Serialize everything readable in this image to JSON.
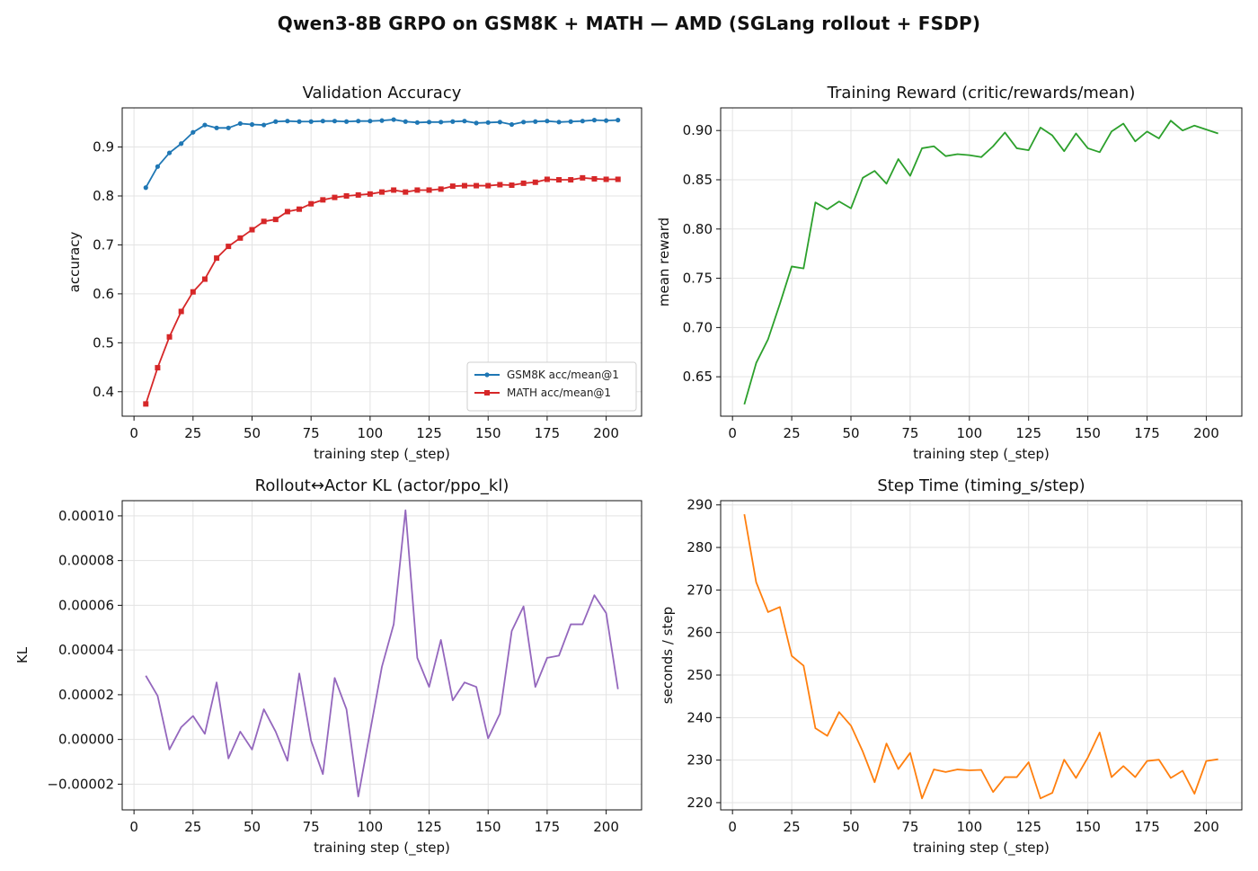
{
  "figure": {
    "suptitle": "Qwen3-8B GRPO on GSM8K + MATH — AMD (SGLang rollout + FSDP)"
  },
  "chart_data": [
    {
      "id": "val_acc",
      "type": "line",
      "title": "Validation Accuracy",
      "xlabel": "training step (_step)",
      "ylabel": "accuracy",
      "xlim": [
        -5,
        215
      ],
      "ylim": [
        0.35,
        0.98
      ],
      "xticks": [
        0,
        25,
        50,
        75,
        100,
        125,
        150,
        175,
        200
      ],
      "xtick_labels": [
        "0",
        "25",
        "50",
        "75",
        "100",
        "125",
        "150",
        "175",
        "200"
      ],
      "yticks": [
        0.4,
        0.5,
        0.6,
        0.7,
        0.8,
        0.9
      ],
      "ytick_labels": [
        "0.4",
        "0.5",
        "0.6",
        "0.7",
        "0.8",
        "0.9"
      ],
      "grid": true,
      "legend": "lower right",
      "x": [
        5,
        10,
        15,
        20,
        25,
        30,
        35,
        40,
        45,
        50,
        55,
        60,
        65,
        70,
        75,
        80,
        85,
        90,
        95,
        100,
        105,
        110,
        115,
        120,
        125,
        130,
        135,
        140,
        145,
        150,
        155,
        160,
        165,
        170,
        175,
        180,
        185,
        190,
        195,
        200,
        205
      ],
      "series": [
        {
          "name": "GSM8K acc/mean@1",
          "color": "#1f77b4",
          "marker": "dot",
          "values": [
            0.817,
            0.86,
            0.888,
            0.907,
            0.93,
            0.945,
            0.939,
            0.939,
            0.948,
            0.946,
            0.945,
            0.952,
            0.953,
            0.952,
            0.952,
            0.953,
            0.953,
            0.952,
            0.953,
            0.953,
            0.954,
            0.956,
            0.952,
            0.95,
            0.951,
            0.951,
            0.952,
            0.953,
            0.949,
            0.95,
            0.951,
            0.946,
            0.951,
            0.952,
            0.953,
            0.951,
            0.952,
            0.953,
            0.955,
            0.954,
            0.955
          ]
        },
        {
          "name": "MATH acc/mean@1",
          "color": "#d62728",
          "marker": "square",
          "values": [
            0.375,
            0.449,
            0.512,
            0.564,
            0.604,
            0.63,
            0.673,
            0.697,
            0.714,
            0.731,
            0.748,
            0.752,
            0.768,
            0.773,
            0.784,
            0.792,
            0.797,
            0.8,
            0.802,
            0.804,
            0.808,
            0.812,
            0.808,
            0.812,
            0.812,
            0.814,
            0.82,
            0.821,
            0.821,
            0.821,
            0.823,
            0.822,
            0.826,
            0.828,
            0.834,
            0.833,
            0.833,
            0.837,
            0.835,
            0.834,
            0.834
          ]
        }
      ]
    },
    {
      "id": "train_reward",
      "type": "line",
      "title": "Training Reward (critic/rewards/mean)",
      "xlabel": "training step (_step)",
      "ylabel": "mean reward",
      "xlim": [
        -5,
        215
      ],
      "ylim": [
        0.61,
        0.923
      ],
      "xticks": [
        0,
        25,
        50,
        75,
        100,
        125,
        150,
        175,
        200
      ],
      "xtick_labels": [
        "0",
        "25",
        "50",
        "75",
        "100",
        "125",
        "150",
        "175",
        "200"
      ],
      "yticks": [
        0.65,
        0.7,
        0.75,
        0.8,
        0.85,
        0.9
      ],
      "ytick_labels": [
        "0.65",
        "0.70",
        "0.75",
        "0.80",
        "0.85",
        "0.90"
      ],
      "grid": true,
      "series": [
        {
          "color": "#2ca02c",
          "x": [
            5,
            10,
            15,
            20,
            25,
            30,
            35,
            40,
            45,
            50,
            55,
            60,
            65,
            70,
            75,
            80,
            85,
            90,
            95,
            100,
            105,
            110,
            115,
            120,
            125,
            130,
            135,
            140,
            145,
            150,
            155,
            160,
            165,
            170,
            175,
            180,
            185,
            190,
            195,
            200,
            205
          ],
          "values": [
            0.622,
            0.664,
            0.688,
            0.724,
            0.762,
            0.76,
            0.827,
            0.82,
            0.828,
            0.821,
            0.852,
            0.859,
            0.846,
            0.871,
            0.854,
            0.882,
            0.884,
            0.874,
            0.876,
            0.875,
            0.873,
            0.884,
            0.898,
            0.882,
            0.88,
            0.903,
            0.895,
            0.879,
            0.897,
            0.882,
            0.878,
            0.899,
            0.907,
            0.889,
            0.899,
            0.892,
            0.91,
            0.9,
            0.905,
            0.901,
            0.897
          ]
        }
      ]
    },
    {
      "id": "kl",
      "type": "line",
      "title": "Rollout↔Actor KL (actor/ppo_kl)",
      "xlabel": "training step (_step)",
      "ylabel": "KL",
      "xlim": [
        -5,
        215
      ],
      "ylim": [
        -3.15e-05,
        0.0001068
      ],
      "xticks": [
        0,
        25,
        50,
        75,
        100,
        125,
        150,
        175,
        200
      ],
      "xtick_labels": [
        "0",
        "25",
        "50",
        "75",
        "100",
        "125",
        "150",
        "175",
        "200"
      ],
      "yticks": [
        -2e-05,
        0.0,
        2e-05,
        4e-05,
        6e-05,
        8e-05,
        0.0001
      ],
      "ytick_labels": [
        "−0.00002",
        "0.00000",
        "0.00002",
        "0.00004",
        "0.00006",
        "0.00008",
        "0.00010"
      ],
      "grid": true,
      "series": [
        {
          "color": "#9467bd",
          "x": [
            5,
            10,
            15,
            20,
            25,
            30,
            35,
            40,
            45,
            50,
            55,
            60,
            65,
            70,
            75,
            80,
            85,
            90,
            95,
            100,
            105,
            110,
            115,
            120,
            125,
            130,
            135,
            140,
            145,
            150,
            155,
            160,
            165,
            170,
            175,
            180,
            185,
            190,
            195,
            200,
            205
          ],
          "values": [
            2.85e-05,
            1.95e-05,
            -4.5e-06,
            5.5e-06,
            1.05e-05,
            2.5e-06,
            2.55e-05,
            -8.5e-06,
            3.5e-06,
            -4.5e-06,
            1.35e-05,
            3.5e-06,
            -9.5e-06,
            2.95e-05,
            -5e-07,
            -1.55e-05,
            2.75e-05,
            1.35e-05,
            -2.55e-05,
            3.5e-06,
            3.25e-05,
            5.15e-05,
            0.0001025,
            3.65e-05,
            2.35e-05,
            4.45e-05,
            1.75e-05,
            2.55e-05,
            2.35e-05,
            5e-07,
            1.15e-05,
            4.85e-05,
            5.95e-05,
            2.35e-05,
            3.65e-05,
            3.75e-05,
            5.15e-05,
            5.15e-05,
            6.45e-05,
            5.65e-05,
            2.25e-05
          ]
        }
      ]
    },
    {
      "id": "step_time",
      "type": "line",
      "title": "Step Time (timing_s/step)",
      "xlabel": "training step (_step)",
      "ylabel": "seconds / step",
      "xlim": [
        -5,
        215
      ],
      "ylim": [
        218.3,
        291.0
      ],
      "xticks": [
        0,
        25,
        50,
        75,
        100,
        125,
        150,
        175,
        200
      ],
      "xtick_labels": [
        "0",
        "25",
        "50",
        "75",
        "100",
        "125",
        "150",
        "175",
        "200"
      ],
      "yticks": [
        220,
        230,
        240,
        250,
        260,
        270,
        280,
        290
      ],
      "ytick_labels": [
        "220",
        "230",
        "240",
        "250",
        "260",
        "270",
        "280",
        "290"
      ],
      "grid": true,
      "series": [
        {
          "color": "#ff7f0e",
          "x": [
            5,
            10,
            15,
            20,
            25,
            30,
            35,
            40,
            45,
            50,
            55,
            60,
            65,
            70,
            75,
            80,
            85,
            90,
            95,
            100,
            105,
            110,
            115,
            120,
            125,
            130,
            135,
            140,
            145,
            150,
            155,
            160,
            165,
            170,
            175,
            180,
            185,
            190,
            195,
            200,
            205
          ],
          "values": [
            287.8,
            271.8,
            264.8,
            266.0,
            254.5,
            252.2,
            237.5,
            235.7,
            241.3,
            238.1,
            232.0,
            224.8,
            233.9,
            227.9,
            231.7,
            221.0,
            227.8,
            227.2,
            227.8,
            227.6,
            227.7,
            222.5,
            226.0,
            226.0,
            229.5,
            221.0,
            222.3,
            230.1,
            225.8,
            230.6,
            236.5,
            226.0,
            228.6,
            226.0,
            229.8,
            230.1,
            225.8,
            227.5,
            222.1,
            229.8,
            230.2
          ]
        }
      ]
    }
  ]
}
